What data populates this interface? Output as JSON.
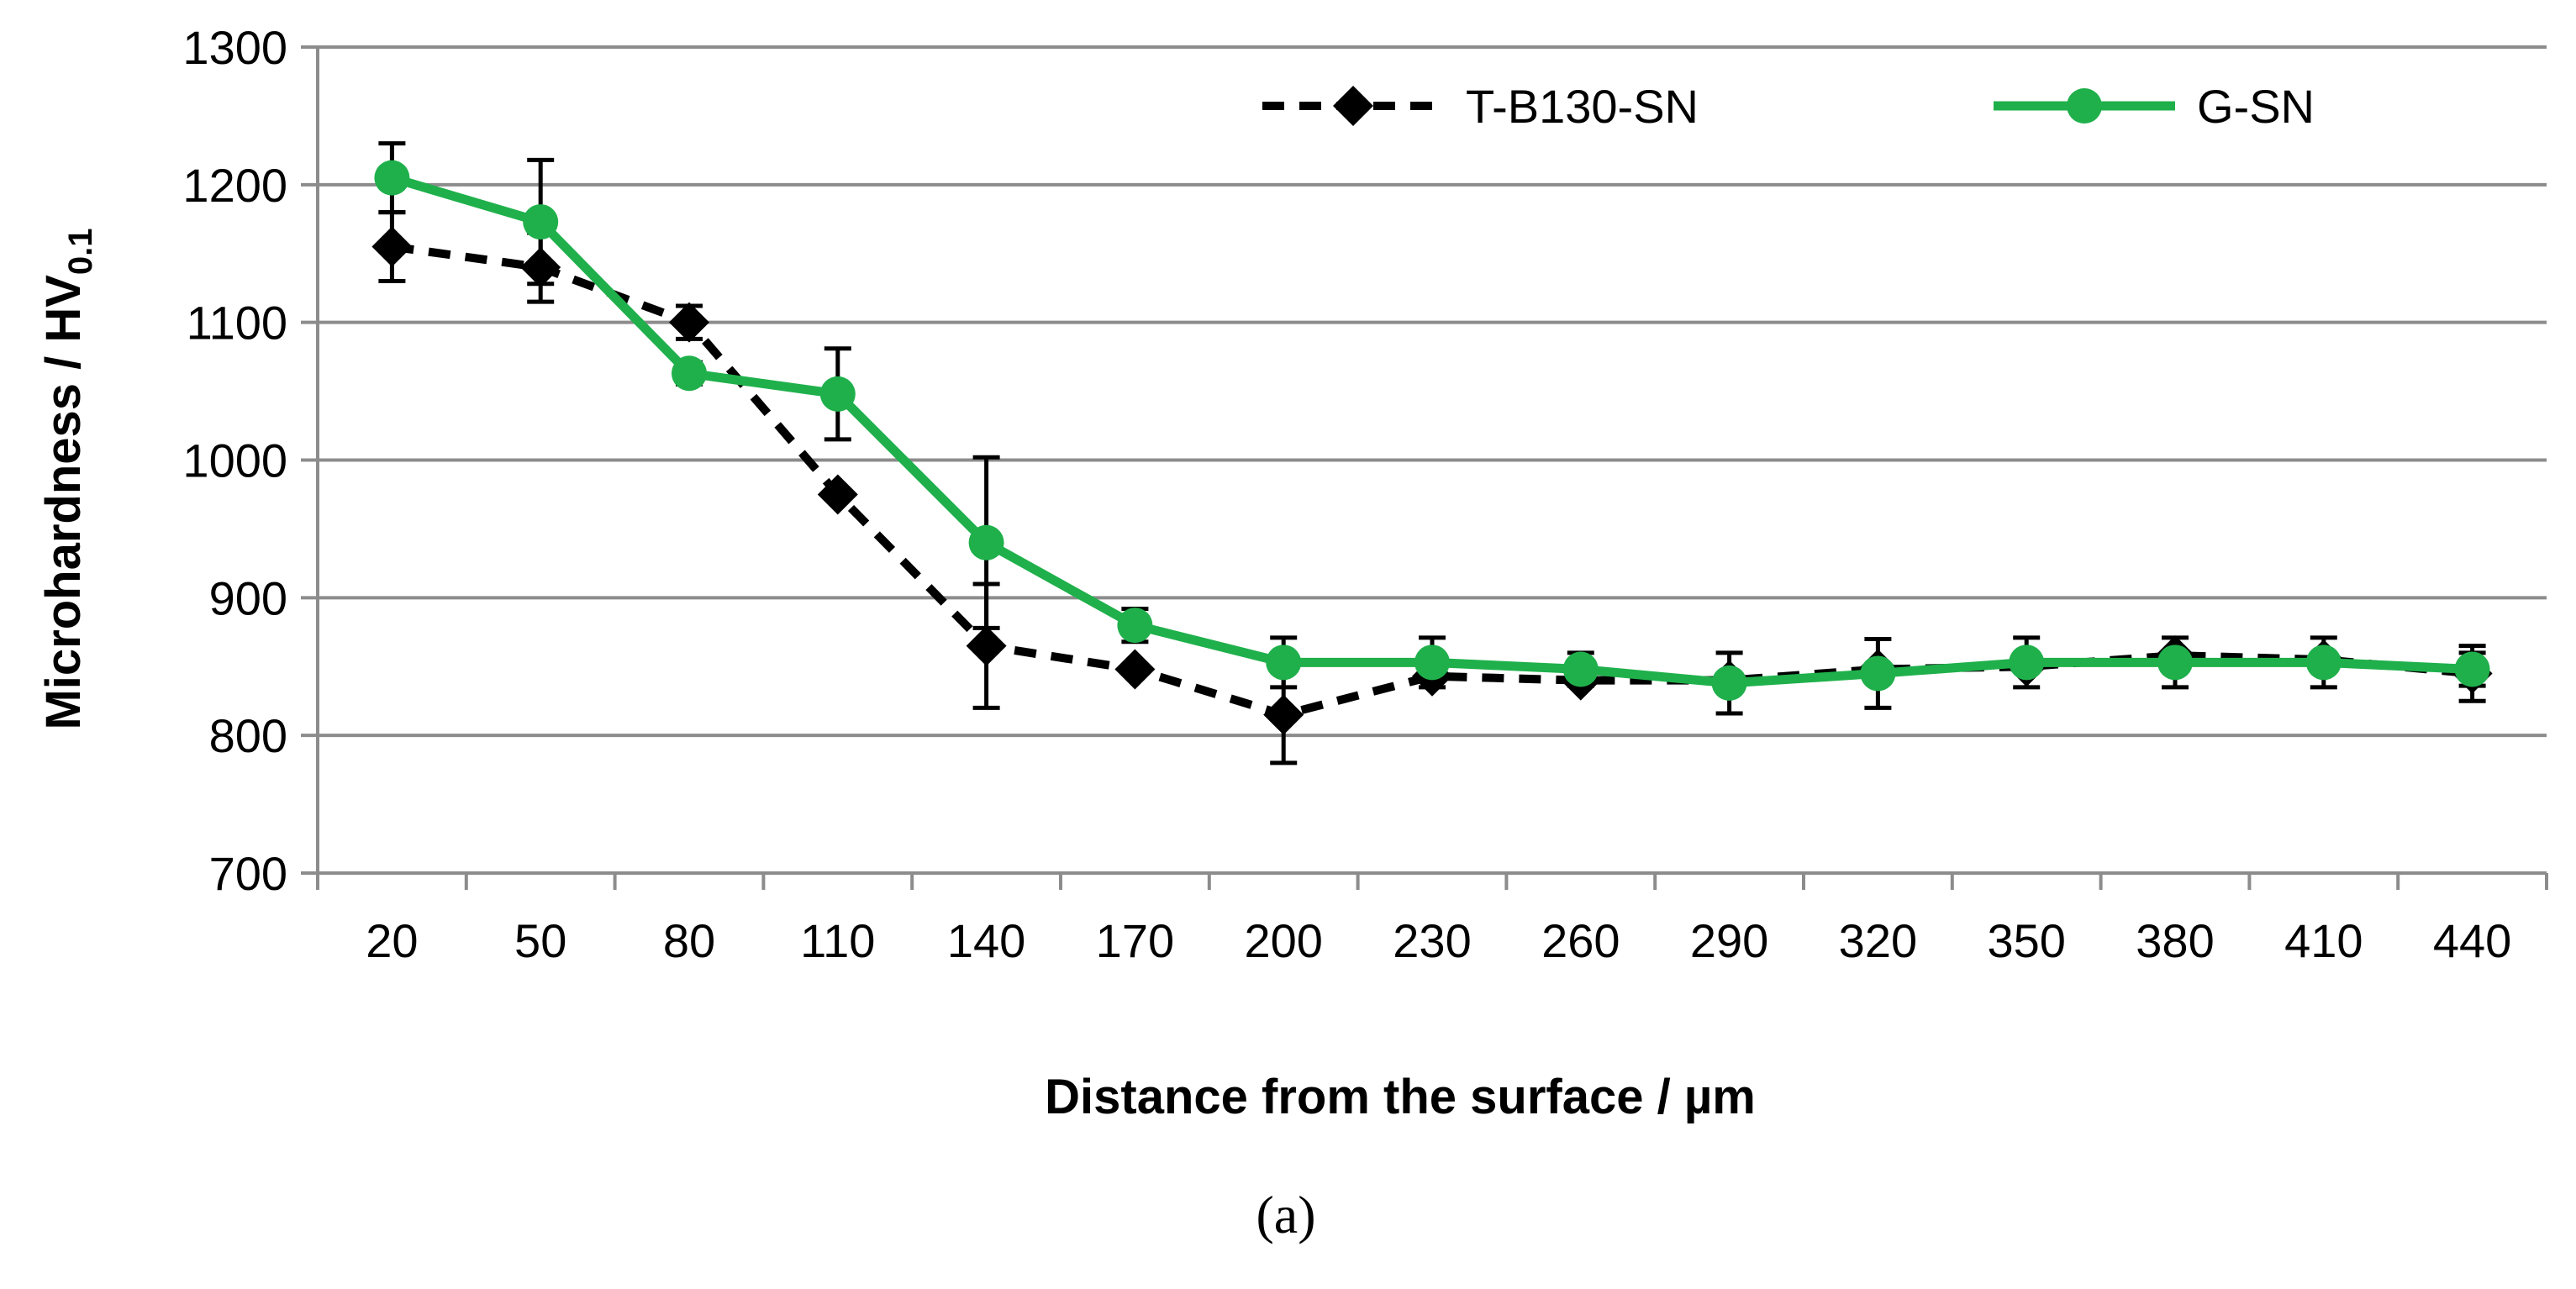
{
  "chart_data": {
    "type": "line",
    "title": "",
    "xlabel": "Distance from the surface / µm",
    "ylabel_main": "Microhardness / HV",
    "ylabel_sub": "0.1",
    "caption": "(a)",
    "categories": [
      "20",
      "50",
      "80",
      "110",
      "140",
      "170",
      "200",
      "230",
      "260",
      "290",
      "320",
      "350",
      "380",
      "410",
      "440"
    ],
    "ylim": [
      700,
      1300
    ],
    "yticks": [
      700,
      800,
      900,
      1000,
      1100,
      1200,
      1300
    ],
    "grid": true,
    "legend_position": "top",
    "series": [
      {
        "name": "T-B130-SN",
        "style": "dashed",
        "marker": "diamond",
        "color": "#000000",
        "values": [
          1155,
          1140,
          1100,
          975,
          865,
          848,
          815,
          843,
          840,
          840,
          848,
          850,
          858,
          855,
          845
        ],
        "errors": [
          25,
          25,
          12,
          0,
          45,
          0,
          35,
          0,
          0,
          0,
          0,
          0,
          0,
          0,
          20
        ]
      },
      {
        "name": "G-SN",
        "style": "solid",
        "marker": "circle",
        "color": "#1FB04B",
        "values": [
          1205,
          1173,
          1063,
          1048,
          940,
          880,
          853,
          853,
          848,
          838,
          845,
          853,
          853,
          853,
          848
        ],
        "errors": [
          25,
          45,
          8,
          33,
          62,
          12,
          18,
          18,
          12,
          22,
          25,
          18,
          18,
          18,
          12
        ]
      }
    ]
  }
}
